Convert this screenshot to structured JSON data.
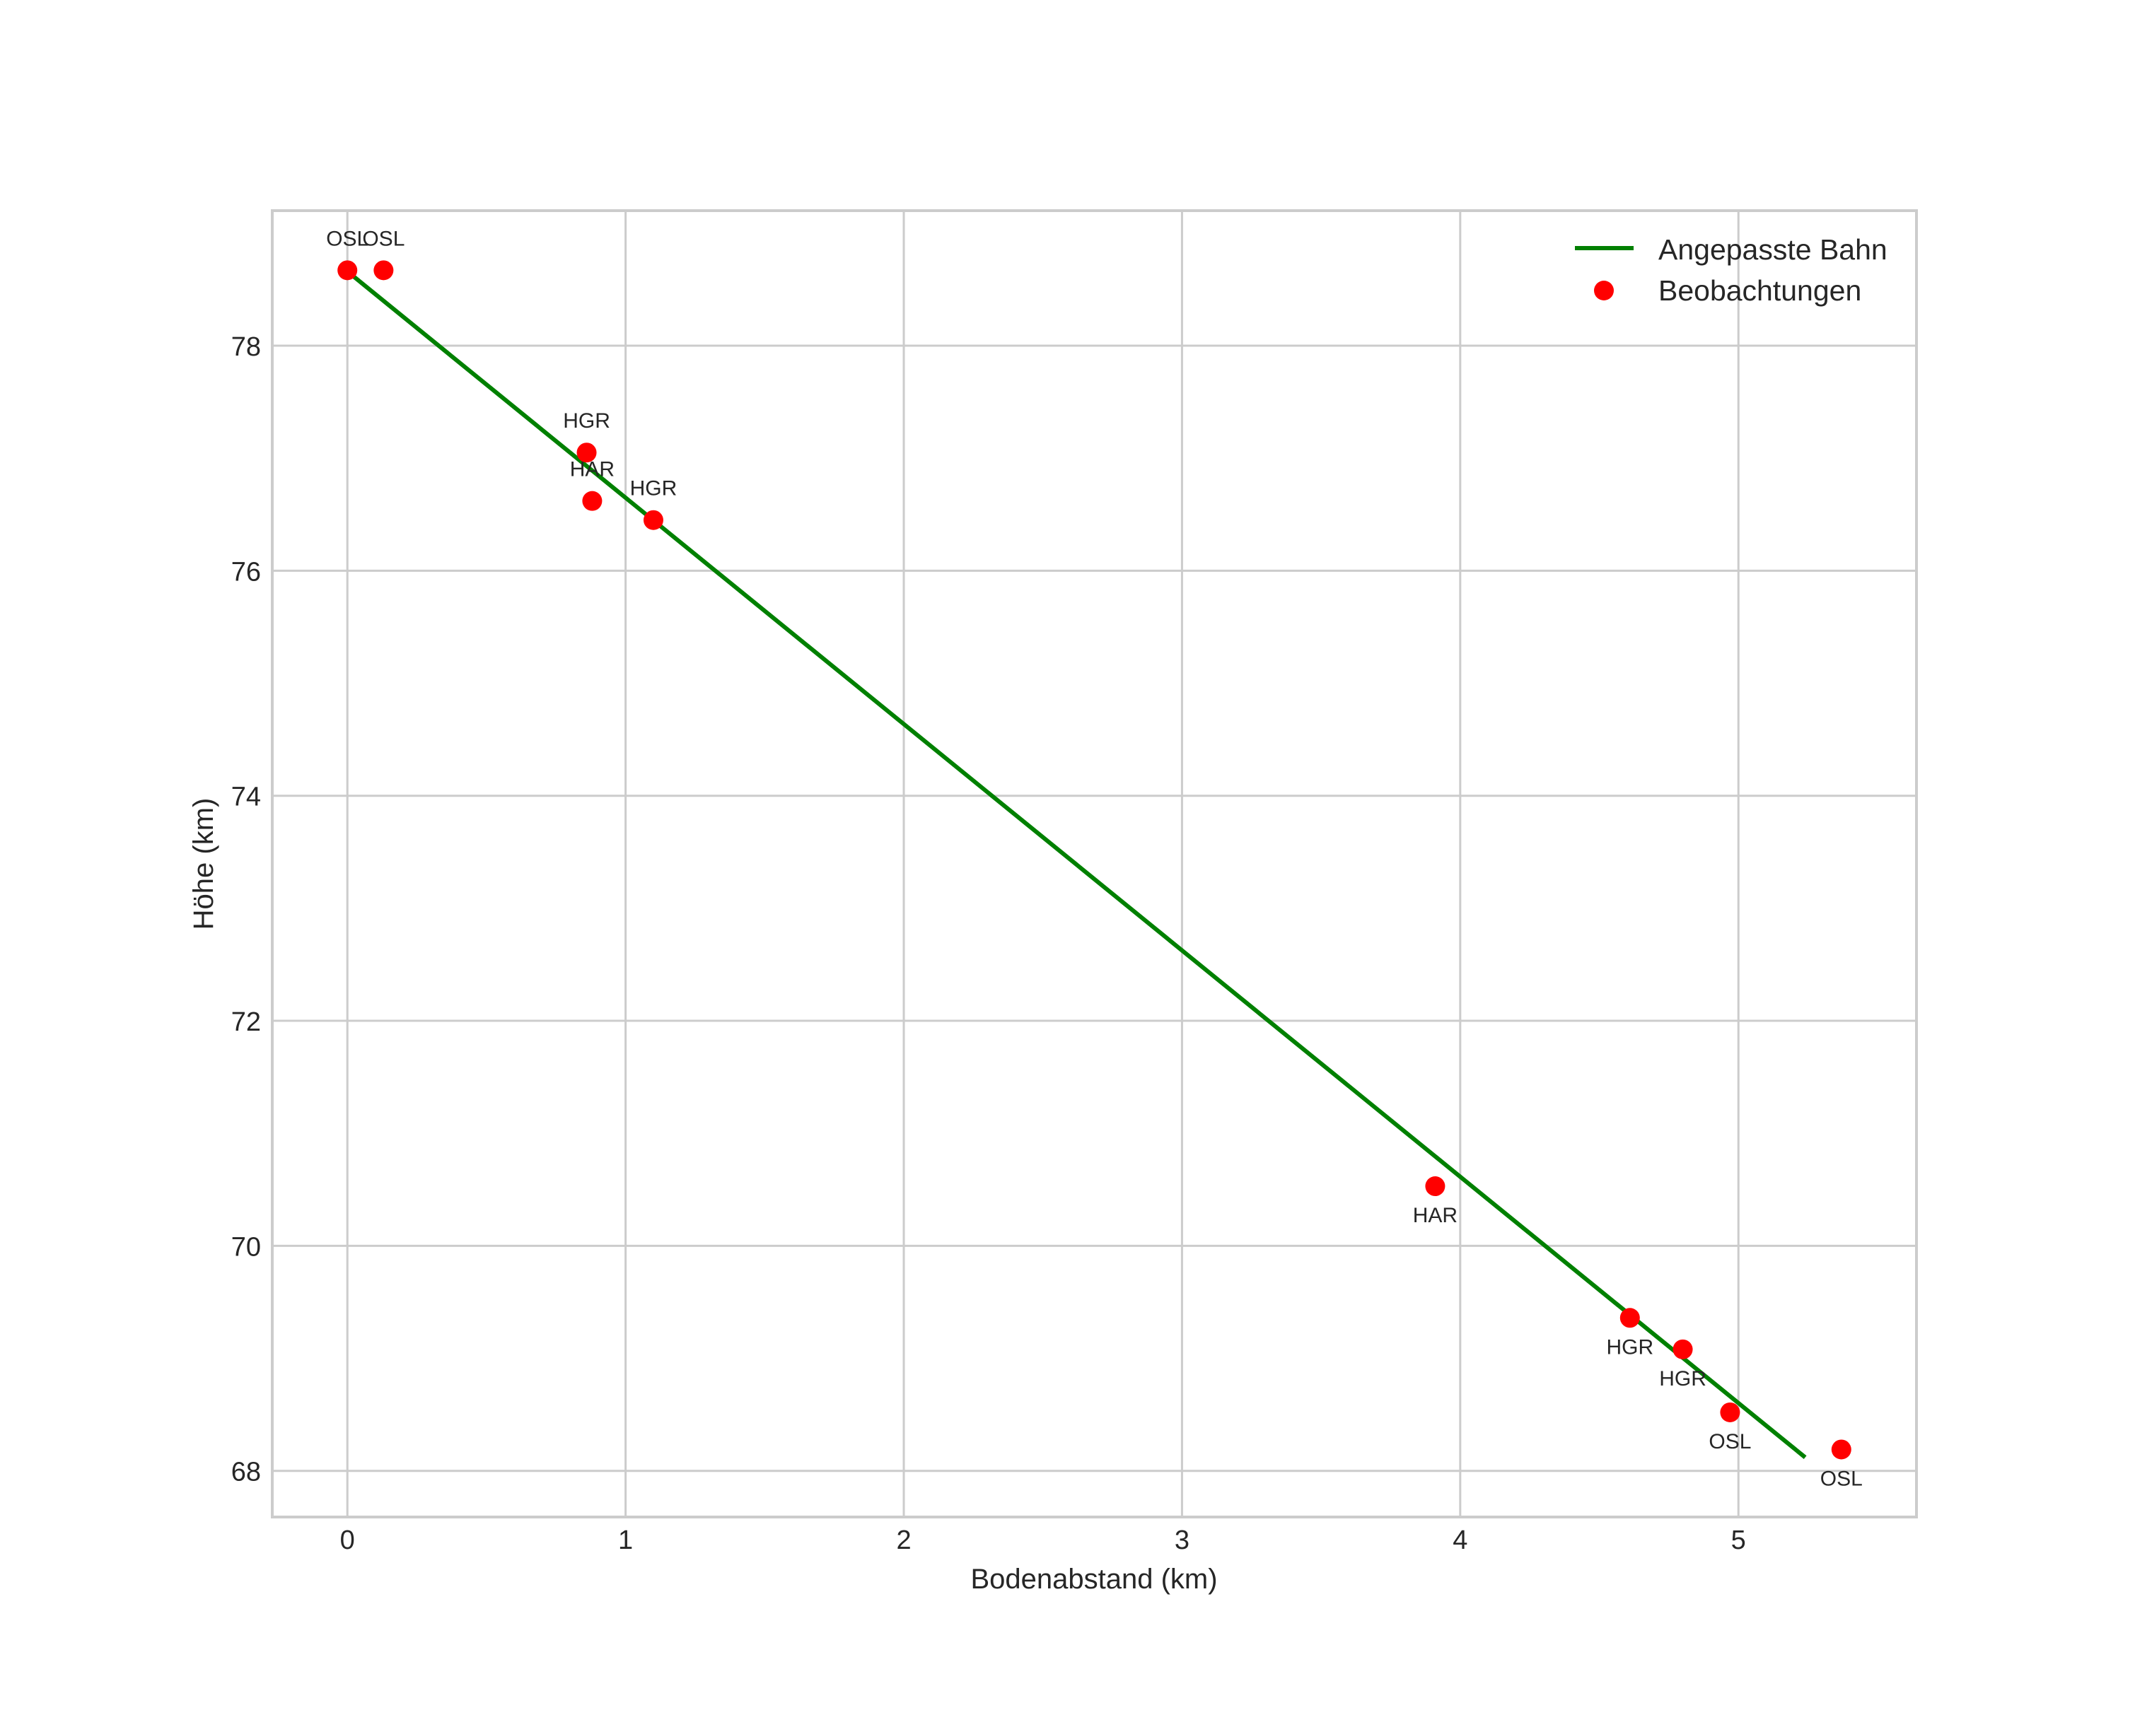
{
  "chart_data": {
    "type": "scatter",
    "title": "",
    "xlabel": "Bodenabstand (km)",
    "ylabel": "Höhe (km)",
    "xlim": [
      -0.27,
      5.64
    ],
    "ylim": [
      67.59,
      79.2
    ],
    "xticks": [
      0,
      1,
      2,
      3,
      4,
      5
    ],
    "yticks": [
      68,
      70,
      72,
      74,
      76,
      78
    ],
    "grid": true,
    "legend_position": "upper right",
    "legend": [
      {
        "label": "Angepasste Bahn",
        "kind": "line",
        "color": "#008000"
      },
      {
        "label": "Beobachtungen",
        "kind": "marker",
        "color": "#ff0000"
      }
    ],
    "series": [
      {
        "name": "Angepasste Bahn",
        "type": "line",
        "color": "#008000",
        "x": [
          0.0,
          5.24
        ],
        "y": [
          78.66,
          68.12
        ]
      },
      {
        "name": "Beobachtungen",
        "type": "scatter",
        "color": "#ff0000",
        "points": [
          {
            "x": 0.0,
            "y": 78.67,
            "label": "OSL",
            "label_pos": "above"
          },
          {
            "x": 0.13,
            "y": 78.67,
            "label": "OSL",
            "label_pos": "above"
          },
          {
            "x": 0.86,
            "y": 77.05,
            "label": "HGR",
            "label_pos": "above"
          },
          {
            "x": 0.88,
            "y": 76.62,
            "label": "HAR",
            "label_pos": "above"
          },
          {
            "x": 1.1,
            "y": 76.45,
            "label": "HGR",
            "label_pos": "above"
          },
          {
            "x": 3.91,
            "y": 70.53,
            "label": "HAR",
            "label_pos": "below"
          },
          {
            "x": 4.61,
            "y": 69.36,
            "label": "HGR",
            "label_pos": "below"
          },
          {
            "x": 4.8,
            "y": 69.08,
            "label": "HGR",
            "label_pos": "below"
          },
          {
            "x": 4.97,
            "y": 68.52,
            "label": "OSL",
            "label_pos": "below"
          },
          {
            "x": 5.37,
            "y": 68.19,
            "label": "OSL",
            "label_pos": "below"
          }
        ]
      }
    ]
  },
  "colors": {
    "grid": "#cccccc",
    "text": "#262626",
    "fit_line": "#008000",
    "observations": "#ff0000",
    "background": "#ffffff"
  }
}
